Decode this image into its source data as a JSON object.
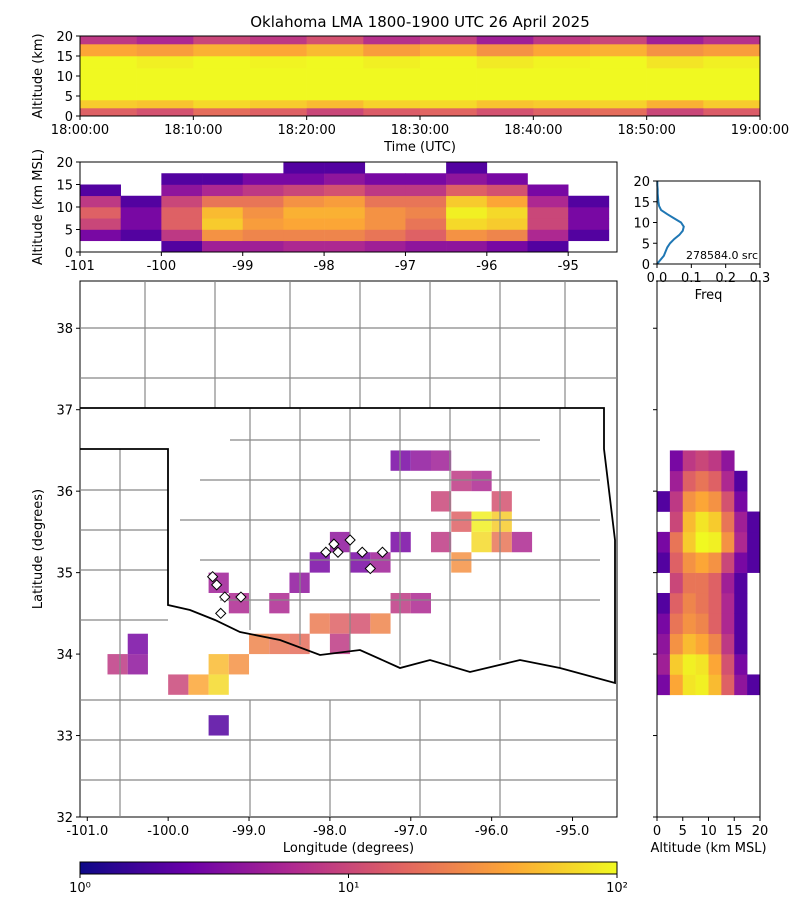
{
  "chart_data": [
    {
      "type": "heatmap",
      "title": "Oklahoma LMA 1800-1900 UTC 26 April 2025",
      "xlabel": "Time (UTC)",
      "ylabel": "Altitude (km)",
      "xbins": [
        "18:00:00",
        "18:05:00",
        "18:10:00",
        "18:15:00",
        "18:20:00",
        "18:25:00",
        "18:30:00",
        "18:35:00",
        "18:40:00",
        "18:45:00",
        "18:50:00",
        "18:55:00",
        "19:00:00"
      ],
      "ybins": [
        0,
        2,
        4,
        8,
        12,
        15,
        18,
        20
      ],
      "values": [
        [
          15,
          60,
          100,
          100,
          100,
          40,
          8
        ],
        [
          12,
          55,
          100,
          100,
          90,
          35,
          6
        ],
        [
          18,
          70,
          100,
          100,
          100,
          45,
          10
        ],
        [
          15,
          60,
          100,
          100,
          95,
          40,
          8
        ],
        [
          10,
          50,
          100,
          100,
          100,
          50,
          12
        ],
        [
          14,
          65,
          100,
          100,
          90,
          35,
          7
        ],
        [
          16,
          70,
          100,
          100,
          100,
          45,
          9
        ],
        [
          12,
          55,
          100,
          100,
          85,
          30,
          5
        ],
        [
          15,
          60,
          100,
          100,
          95,
          40,
          8
        ],
        [
          18,
          65,
          100,
          100,
          100,
          45,
          10
        ],
        [
          10,
          45,
          100,
          100,
          80,
          30,
          5
        ],
        [
          14,
          60,
          100,
          100,
          90,
          35,
          7
        ]
      ],
      "xlim": [
        "18:00:00",
        "19:00:00"
      ],
      "ylim": [
        0,
        20
      ],
      "xticks": [
        "18:00:00",
        "18:10:00",
        "18:20:00",
        "18:30:00",
        "18:40:00",
        "18:50:00",
        "19:00:00"
      ],
      "yticks": [
        0,
        5,
        10,
        15,
        20
      ]
    },
    {
      "type": "heatmap",
      "ylabel": "Altitude (km MSL)",
      "xbins": [
        -101,
        -100.5,
        -100,
        -99.5,
        -99,
        -98.5,
        -98,
        -97.5,
        -97,
        -96.5,
        -96,
        -95.5,
        -95,
        -94.5
      ],
      "ybins": [
        0,
        2.5,
        5,
        7.5,
        10,
        12.5,
        15,
        17.5,
        20
      ],
      "values": [
        [
          null,
          3,
          10,
          15,
          8,
          2,
          null,
          null
        ],
        [
          null,
          2,
          3,
          3,
          2,
          null,
          null,
          null
        ],
        [
          2,
          8,
          15,
          15,
          10,
          4,
          2,
          null
        ],
        [
          5,
          30,
          60,
          50,
          20,
          6,
          2,
          null
        ],
        [
          5,
          25,
          35,
          30,
          20,
          8,
          3,
          null
        ],
        [
          6,
          25,
          40,
          45,
          30,
          10,
          3,
          2
        ],
        [
          6,
          25,
          40,
          45,
          35,
          12,
          4,
          2
        ],
        [
          5,
          20,
          30,
          30,
          20,
          8,
          3,
          null
        ],
        [
          4,
          15,
          20,
          25,
          20,
          8,
          3,
          null
        ],
        [
          4,
          30,
          70,
          90,
          60,
          15,
          4,
          2
        ],
        [
          3,
          25,
          60,
          70,
          40,
          12,
          3,
          null
        ],
        [
          2,
          6,
          10,
          10,
          6,
          3,
          null,
          null
        ],
        [
          null,
          2,
          3,
          3,
          2,
          null,
          null,
          null
        ]
      ],
      "xlim": [
        -101,
        -94.4
      ],
      "ylim": [
        0,
        20
      ],
      "xticks": [
        -101,
        -100,
        -99,
        -98,
        -97,
        -96,
        -95
      ],
      "yticks": [
        0,
        5,
        10,
        15,
        20
      ]
    },
    {
      "type": "line",
      "xlabel": "Freq",
      "annotation": "278584.0 src",
      "color": "#1f77b4",
      "x": [
        0,
        1,
        2,
        3,
        4,
        5,
        6,
        7,
        8,
        9,
        10,
        11,
        12,
        13,
        14,
        15,
        16,
        17,
        18,
        19,
        20
      ],
      "values": [
        0,
        0.01,
        0.02,
        0.025,
        0.03,
        0.038,
        0.05,
        0.065,
        0.075,
        0.078,
        0.07,
        0.05,
        0.03,
        0.012,
        0.006,
        0.004,
        0.003,
        0.002,
        0.002,
        0.001,
        0.001
      ],
      "xlim": [
        0,
        0.3
      ],
      "ylim": [
        0,
        20
      ],
      "xticks": [
        {
          "value": 0,
          "label": "0.0"
        },
        {
          "value": 0.1,
          "label": "0.1"
        },
        {
          "value": 0.2,
          "label": "0.2"
        },
        {
          "value": 0.3,
          "label": "0.3"
        }
      ],
      "yticks": [
        0,
        5,
        10,
        15,
        20
      ]
    },
    {
      "type": "density",
      "xlabel": "Longitude (degrees)",
      "ylabel": "Latitude (degrees)",
      "x": [
        -100.75,
        -100.5,
        -99.75,
        -99.5,
        -99.5,
        -99.25,
        -99,
        -98.75,
        -98.5,
        -98.25,
        -98,
        -97.75,
        -97.5,
        -97.25,
        -99.25,
        -99.5,
        -98.75,
        -98.5,
        -98.25,
        -98,
        -97.75,
        -97.5,
        -97.25,
        -96.5,
        -96.25,
        -96,
        -96.25,
        -96,
        -96.5,
        -96.75,
        -96.5,
        -96.25,
        -97,
        -96.75,
        -97.25,
        -96,
        -95.75,
        -96.75,
        -100,
        -97,
        -98,
        -99.5,
        -100.5
      ],
      "y": [
        33.75,
        33.75,
        33.5,
        33.5,
        33.75,
        33.75,
        34,
        34,
        34,
        34.25,
        34.25,
        34.25,
        34.25,
        34.5,
        34.5,
        34.75,
        34.5,
        34.75,
        35,
        35.25,
        35,
        35,
        35.25,
        35,
        35.25,
        35.5,
        35.5,
        35.25,
        35.5,
        35.75,
        36,
        36,
        36.25,
        36.25,
        36.25,
        35.75,
        35.25,
        35.25,
        33.5,
        34.5,
        34,
        33,
        34
      ],
      "values": [
        8,
        4,
        40,
        70,
        50,
        30,
        25,
        20,
        18,
        22,
        15,
        12,
        25,
        8,
        6,
        5,
        6,
        4,
        3,
        4,
        3,
        5,
        3,
        30,
        70,
        60,
        90,
        20,
        15,
        10,
        8,
        6,
        4,
        5,
        3,
        12,
        6,
        8,
        10,
        6,
        8,
        2,
        3
      ],
      "stations": {
        "x": [
          -99.45,
          -99.4,
          -99.3,
          -99.35,
          -99.1,
          -98.05,
          -97.9,
          -97.75,
          -97.6,
          -97.5,
          -97.35,
          -97.95
        ],
        "y": [
          34.95,
          34.85,
          34.7,
          34.5,
          34.7,
          35.25,
          35.25,
          35.4,
          35.25,
          35.05,
          35.25,
          35.35
        ]
      },
      "xlim": [
        -101.09,
        -94.45
      ],
      "ylim": [
        32,
        38.58
      ],
      "xticks": [
        {
          "value": -101,
          "label": "-101.0"
        },
        {
          "value": -100,
          "label": "-100.0"
        },
        {
          "value": -99,
          "label": "-99.0"
        },
        {
          "value": -98,
          "label": "-98.0"
        },
        {
          "value": -97,
          "label": "-97.0"
        },
        {
          "value": -96,
          "label": "-96.0"
        },
        {
          "value": -95,
          "label": "-95.0"
        }
      ],
      "yticks": [
        32,
        33,
        34,
        35,
        36,
        37,
        38
      ]
    },
    {
      "type": "heatmap",
      "xlabel": "Altitude (km MSL)",
      "xbins": [
        0,
        2.5,
        5,
        7.5,
        10,
        12.5,
        15,
        17.5,
        20
      ],
      "ybins": [
        33.5,
        33.75,
        34,
        34.25,
        34.5,
        34.75,
        35,
        35.25,
        35.5,
        35.75,
        36,
        36.25,
        36.5
      ],
      "values": [
        [
          3,
          5,
          4,
          3,
          2,
          null,
          2,
          3,
          null,
          2,
          null,
          null
        ],
        [
          40,
          60,
          30,
          20,
          15,
          10,
          15,
          20,
          10,
          8,
          5,
          3
        ],
        [
          80,
          90,
          50,
          30,
          25,
          20,
          30,
          60,
          50,
          30,
          15,
          8
        ],
        [
          90,
          80,
          40,
          25,
          20,
          20,
          40,
          100,
          80,
          40,
          20,
          10
        ],
        [
          50,
          40,
          25,
          15,
          15,
          15,
          30,
          90,
          60,
          30,
          15,
          8
        ],
        [
          15,
          12,
          8,
          6,
          6,
          5,
          10,
          30,
          20,
          12,
          6,
          4
        ],
        [
          4,
          3,
          2,
          2,
          2,
          2,
          3,
          6,
          5,
          3,
          2,
          null
        ],
        [
          2,
          null,
          null,
          null,
          null,
          null,
          2,
          2,
          2,
          null,
          null,
          null
        ]
      ],
      "xlim": [
        0,
        20
      ],
      "ylim": [
        32,
        38.58
      ],
      "xticks": [
        0,
        5,
        10,
        15,
        20
      ],
      "yticks": [
        32,
        33,
        34,
        35,
        36,
        37,
        38
      ],
      "show_ytick_labels": false
    },
    {
      "type": "colorbar",
      "scale": "log",
      "lim": [
        1,
        100
      ],
      "ticks": [
        {
          "value": 1,
          "label": "10⁰"
        },
        {
          "value": 10,
          "label": "10¹"
        },
        {
          "value": 100,
          "label": "10²"
        }
      ],
      "colormap": [
        "#0d0887",
        "#6a00a8",
        "#b12a90",
        "#e16462",
        "#fca636",
        "#f0f921"
      ]
    }
  ]
}
